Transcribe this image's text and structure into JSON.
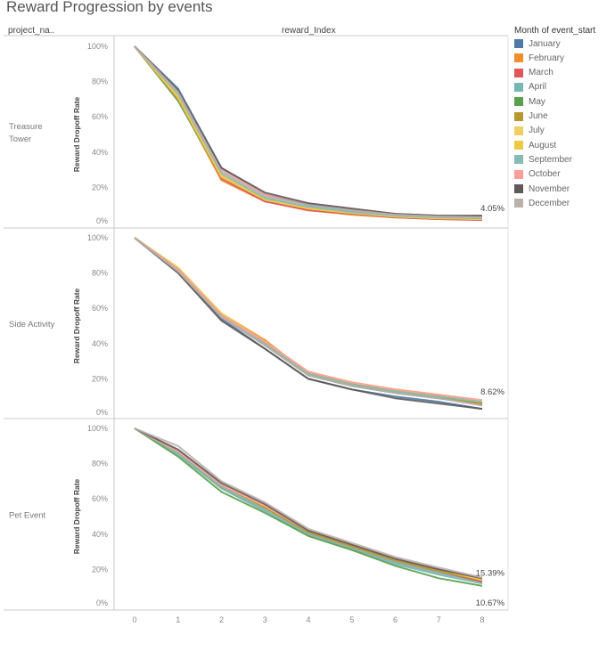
{
  "title": "Reward Progression by events",
  "header": {
    "row_dim": "project_na..",
    "col_dim": "reward_Index"
  },
  "legend": {
    "title": "Month of event_start",
    "items": [
      {
        "label": "January",
        "color": "#4e79a7"
      },
      {
        "label": "February",
        "color": "#f28e2b"
      },
      {
        "label": "March",
        "color": "#e15759"
      },
      {
        "label": "April",
        "color": "#76b7b2"
      },
      {
        "label": "May",
        "color": "#59a14f"
      },
      {
        "label": "June",
        "color": "#b6992d"
      },
      {
        "label": "July",
        "color": "#f1ce63"
      },
      {
        "label": "August",
        "color": "#edc948"
      },
      {
        "label": "September",
        "color": "#86bcb6"
      },
      {
        "label": "October",
        "color": "#ff9d9a"
      },
      {
        "label": "November",
        "color": "#5f5a58"
      },
      {
        "label": "December",
        "color": "#bab0ac"
      }
    ]
  },
  "chart_data": {
    "type": "line",
    "x": [
      0,
      1,
      2,
      3,
      4,
      5,
      6,
      7,
      8
    ],
    "x_tick_labels": [
      "0",
      "1",
      "2",
      "3",
      "4",
      "5",
      "6",
      "7",
      "8"
    ],
    "ylabel": "Reward Dropoff Rate",
    "ylim": [
      0,
      100
    ],
    "y_tick_labels": [
      "100%",
      "80%",
      "60%",
      "40%",
      "20%",
      "0%"
    ],
    "grid": false,
    "legend_position": "right",
    "panels": [
      {
        "label": "Treasure Tower",
        "annotations": [
          {
            "text": "4.05%",
            "x": 8,
            "y": 4.05
          }
        ],
        "series": [
          {
            "name": "January",
            "values": [
              100,
              76,
              31,
              16,
              10,
              7,
              4.5,
              3,
              2
            ]
          },
          {
            "name": "February",
            "values": [
              100,
              70,
              24,
              12,
              7,
              4.5,
              3,
              2,
              1.5
            ]
          },
          {
            "name": "March",
            "values": [
              100,
              71,
              25,
              12,
              7,
              5,
              3,
              2,
              1.5
            ]
          },
          {
            "name": "April",
            "values": [
              100,
              72,
              27,
              14,
              9,
              6,
              4,
              3,
              2
            ]
          },
          {
            "name": "May",
            "values": [
              100,
              69,
              26,
              13,
              8,
              5.5,
              3.5,
              2.5,
              2
            ]
          },
          {
            "name": "June",
            "values": [
              100,
              70,
              26,
              13,
              8,
              5.5,
              3.5,
              2.5,
              2
            ]
          },
          {
            "name": "July",
            "values": [
              100,
              71,
              26,
              13,
              8,
              5.5,
              3.5,
              2.5,
              2
            ]
          },
          {
            "name": "August",
            "values": [
              100,
              72,
              27,
              13,
              8,
              5.5,
              3.5,
              2.5,
              2
            ]
          },
          {
            "name": "September",
            "values": [
              100,
              73,
              28,
              14,
              9,
              6,
              4,
              3,
              2.5
            ]
          },
          {
            "name": "October",
            "values": [
              100,
              74,
              30,
              16,
              11,
              8,
              5,
              4,
              3.5
            ]
          },
          {
            "name": "November",
            "values": [
              100,
              75,
              31,
              17,
              11,
              8,
              5,
              4,
              4
            ]
          },
          {
            "name": "December",
            "values": [
              100,
              74,
              29,
              15,
              10,
              7,
              4.5,
              3.5,
              3
            ]
          }
        ]
      },
      {
        "label": "Side Activity",
        "annotations": [
          {
            "text": "8.62%",
            "x": 8,
            "y": 8.62
          }
        ],
        "series": [
          {
            "name": "January",
            "values": [
              100,
              81,
              54,
              37,
              20,
              14,
              10,
              7,
              3
            ]
          },
          {
            "name": "February",
            "values": [
              100,
              83,
              57,
              42,
              23,
              17,
              13,
              10,
              6
            ]
          },
          {
            "name": "March",
            "values": [
              100,
              82,
              56,
              41,
              22,
              16,
              12,
              9,
              5
            ]
          },
          {
            "name": "April",
            "values": [
              100,
              82,
              56,
              40,
              22,
              16,
              12,
              9,
              6
            ]
          },
          {
            "name": "May",
            "values": [
              100,
              81,
              55,
              39,
              22,
              16,
              12,
              9,
              6
            ]
          },
          {
            "name": "June",
            "values": [
              100,
              82,
              56,
              40,
              23,
              17,
              13,
              10,
              6
            ]
          },
          {
            "name": "July",
            "values": [
              100,
              83,
              57,
              41,
              24,
              18,
              14,
              11,
              7
            ]
          },
          {
            "name": "August",
            "values": [
              100,
              83,
              57,
              41,
              24,
              18,
              14,
              11,
              7
            ]
          },
          {
            "name": "September",
            "values": [
              100,
              82,
              56,
              40,
              23,
              17,
              13,
              10,
              7
            ]
          },
          {
            "name": "October",
            "values": [
              100,
              82,
              56,
              41,
              24,
              18,
              14,
              11,
              8
            ]
          },
          {
            "name": "November",
            "values": [
              100,
              80,
              53,
              37,
              20,
              14,
              9,
              6,
              3
            ]
          },
          {
            "name": "December",
            "values": [
              100,
              81,
              55,
              39,
              22,
              16,
              12,
              9,
              5
            ]
          }
        ]
      },
      {
        "label": "Pet Event",
        "annotations": [
          {
            "text": "15.39%",
            "x": 8,
            "y": 15.39
          },
          {
            "text": "10.67%",
            "x": 8,
            "y": 10.67
          }
        ],
        "series": [
          {
            "name": "January",
            "values": [
              100,
              86,
              67,
              55,
              41,
              32,
              24,
              18,
              13
            ]
          },
          {
            "name": "February",
            "values": [
              100,
              86,
              67,
              55,
              41,
              33,
              25,
              19,
              14
            ]
          },
          {
            "name": "March",
            "values": [
              100,
              86,
              66,
              54,
              40,
              32,
              24,
              18,
              13
            ]
          },
          {
            "name": "April",
            "values": [
              100,
              85,
              66,
              53,
              39,
              31,
              23,
              17,
              12
            ]
          },
          {
            "name": "May",
            "values": [
              100,
              84,
              64,
              52,
              39,
              31,
              22,
              15,
              10.67
            ]
          },
          {
            "name": "June",
            "values": [
              100,
              86,
              67,
              55,
              41,
              33,
              25,
              19,
              14
            ]
          },
          {
            "name": "July",
            "values": [
              100,
              87,
              68,
              56,
              42,
              34,
              26,
              20,
              15
            ]
          },
          {
            "name": "August",
            "values": [
              100,
              87,
              68,
              56,
              42,
              34,
              26,
              20,
              14
            ]
          },
          {
            "name": "September",
            "values": [
              100,
              86,
              67,
              54,
              40,
              32,
              24,
              18,
              12
            ]
          },
          {
            "name": "October",
            "values": [
              100,
              87,
              68,
              56,
              42,
              34,
              26,
              20,
              15
            ]
          },
          {
            "name": "November",
            "values": [
              100,
              88,
              69,
              57,
              42,
              34,
              26,
              20,
              15
            ]
          },
          {
            "name": "December",
            "values": [
              100,
              90,
              70,
              58,
              43,
              35,
              27,
              21,
              15.39
            ]
          }
        ]
      }
    ]
  }
}
